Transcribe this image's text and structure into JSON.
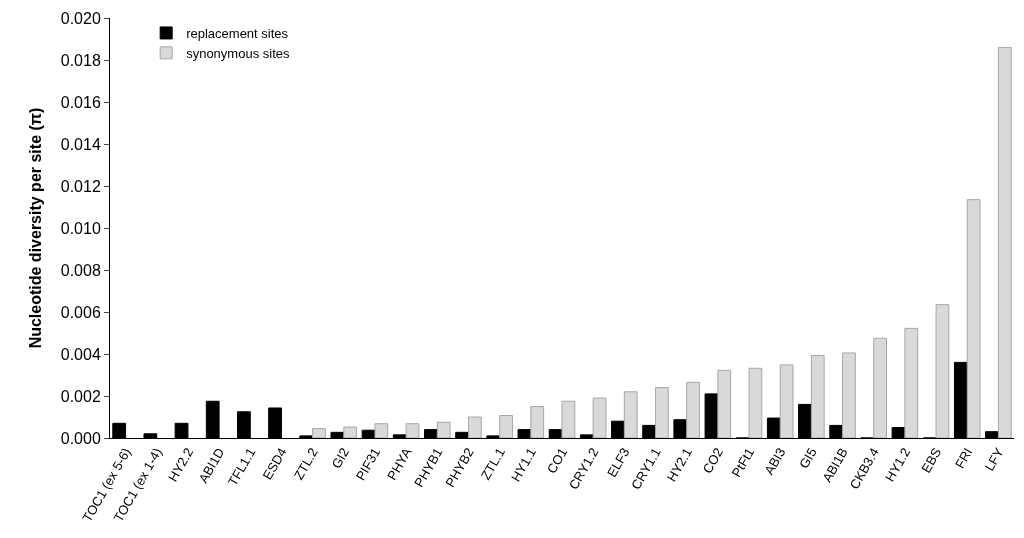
{
  "chart_data": {
    "type": "bar",
    "ylabel": "Nucleotide diversity per site (π)",
    "categories": [
      "TOC1 (ex 5-6)",
      "TOC1 (ex 1-4)",
      "HY2.2",
      "ABI1D",
      "TFL1.1",
      "ESD4",
      "ZTL.2",
      "GI2",
      "PIF31",
      "PHYA",
      "PHYB1",
      "PHYB2",
      "ZTL.1",
      "HY1.1",
      "CO1",
      "CRY1.2",
      "ELF3",
      "CRY1.1",
      "HY2.1",
      "CO2",
      "PtFt1",
      "ABI3",
      "GI5",
      "ABI1B",
      "CKB3.4",
      "HY1.2",
      "EBS",
      "FRI",
      "LFY"
    ],
    "series": [
      {
        "name": "replacement sites",
        "color": "#000000",
        "values": [
          0.0007,
          0.0002,
          0.0007,
          0.00175,
          0.00125,
          0.00143,
          0.0001,
          0.00027,
          0.00037,
          0.00015,
          0.0004,
          0.00027,
          0.0001,
          0.0004,
          0.0004,
          0.00015,
          0.0008,
          0.0006,
          0.00087,
          0.0021,
          0,
          0.00095,
          0.0016,
          0.0006,
          0,
          0.0005,
          0,
          0.0036,
          0.0003
        ]
      },
      {
        "name": "synonymous sites",
        "color": "#d9d9d9",
        "values": [
          null,
          null,
          null,
          null,
          null,
          null,
          0.00045,
          0.00052,
          0.00068,
          0.00068,
          0.00075,
          0.001,
          0.00107,
          0.0015,
          0.00175,
          0.0019,
          0.0022,
          0.0024,
          0.00265,
          0.00322,
          0.00332,
          0.00348,
          0.00393,
          0.00405,
          0.00475,
          0.00522,
          0.00635,
          0.01135,
          0.0186
        ]
      }
    ],
    "ylim": [
      0,
      0.02
    ],
    "yticks": [
      {
        "value": 0,
        "label": "0.000"
      },
      {
        "value": 0.002,
        "label": "0.002"
      },
      {
        "value": 0.004,
        "label": "0.004"
      },
      {
        "value": 0.006,
        "label": "0.006"
      },
      {
        "value": 0.008,
        "label": "0.008"
      },
      {
        "value": 0.01,
        "label": "0.010"
      },
      {
        "value": 0.012,
        "label": "0.012"
      },
      {
        "value": 0.014,
        "label": "0.014"
      },
      {
        "value": 0.016,
        "label": "0.016"
      },
      {
        "value": 0.018,
        "label": "0.018"
      },
      {
        "value": 0.02,
        "label": "0.020"
      }
    ],
    "legend": "top left"
  }
}
